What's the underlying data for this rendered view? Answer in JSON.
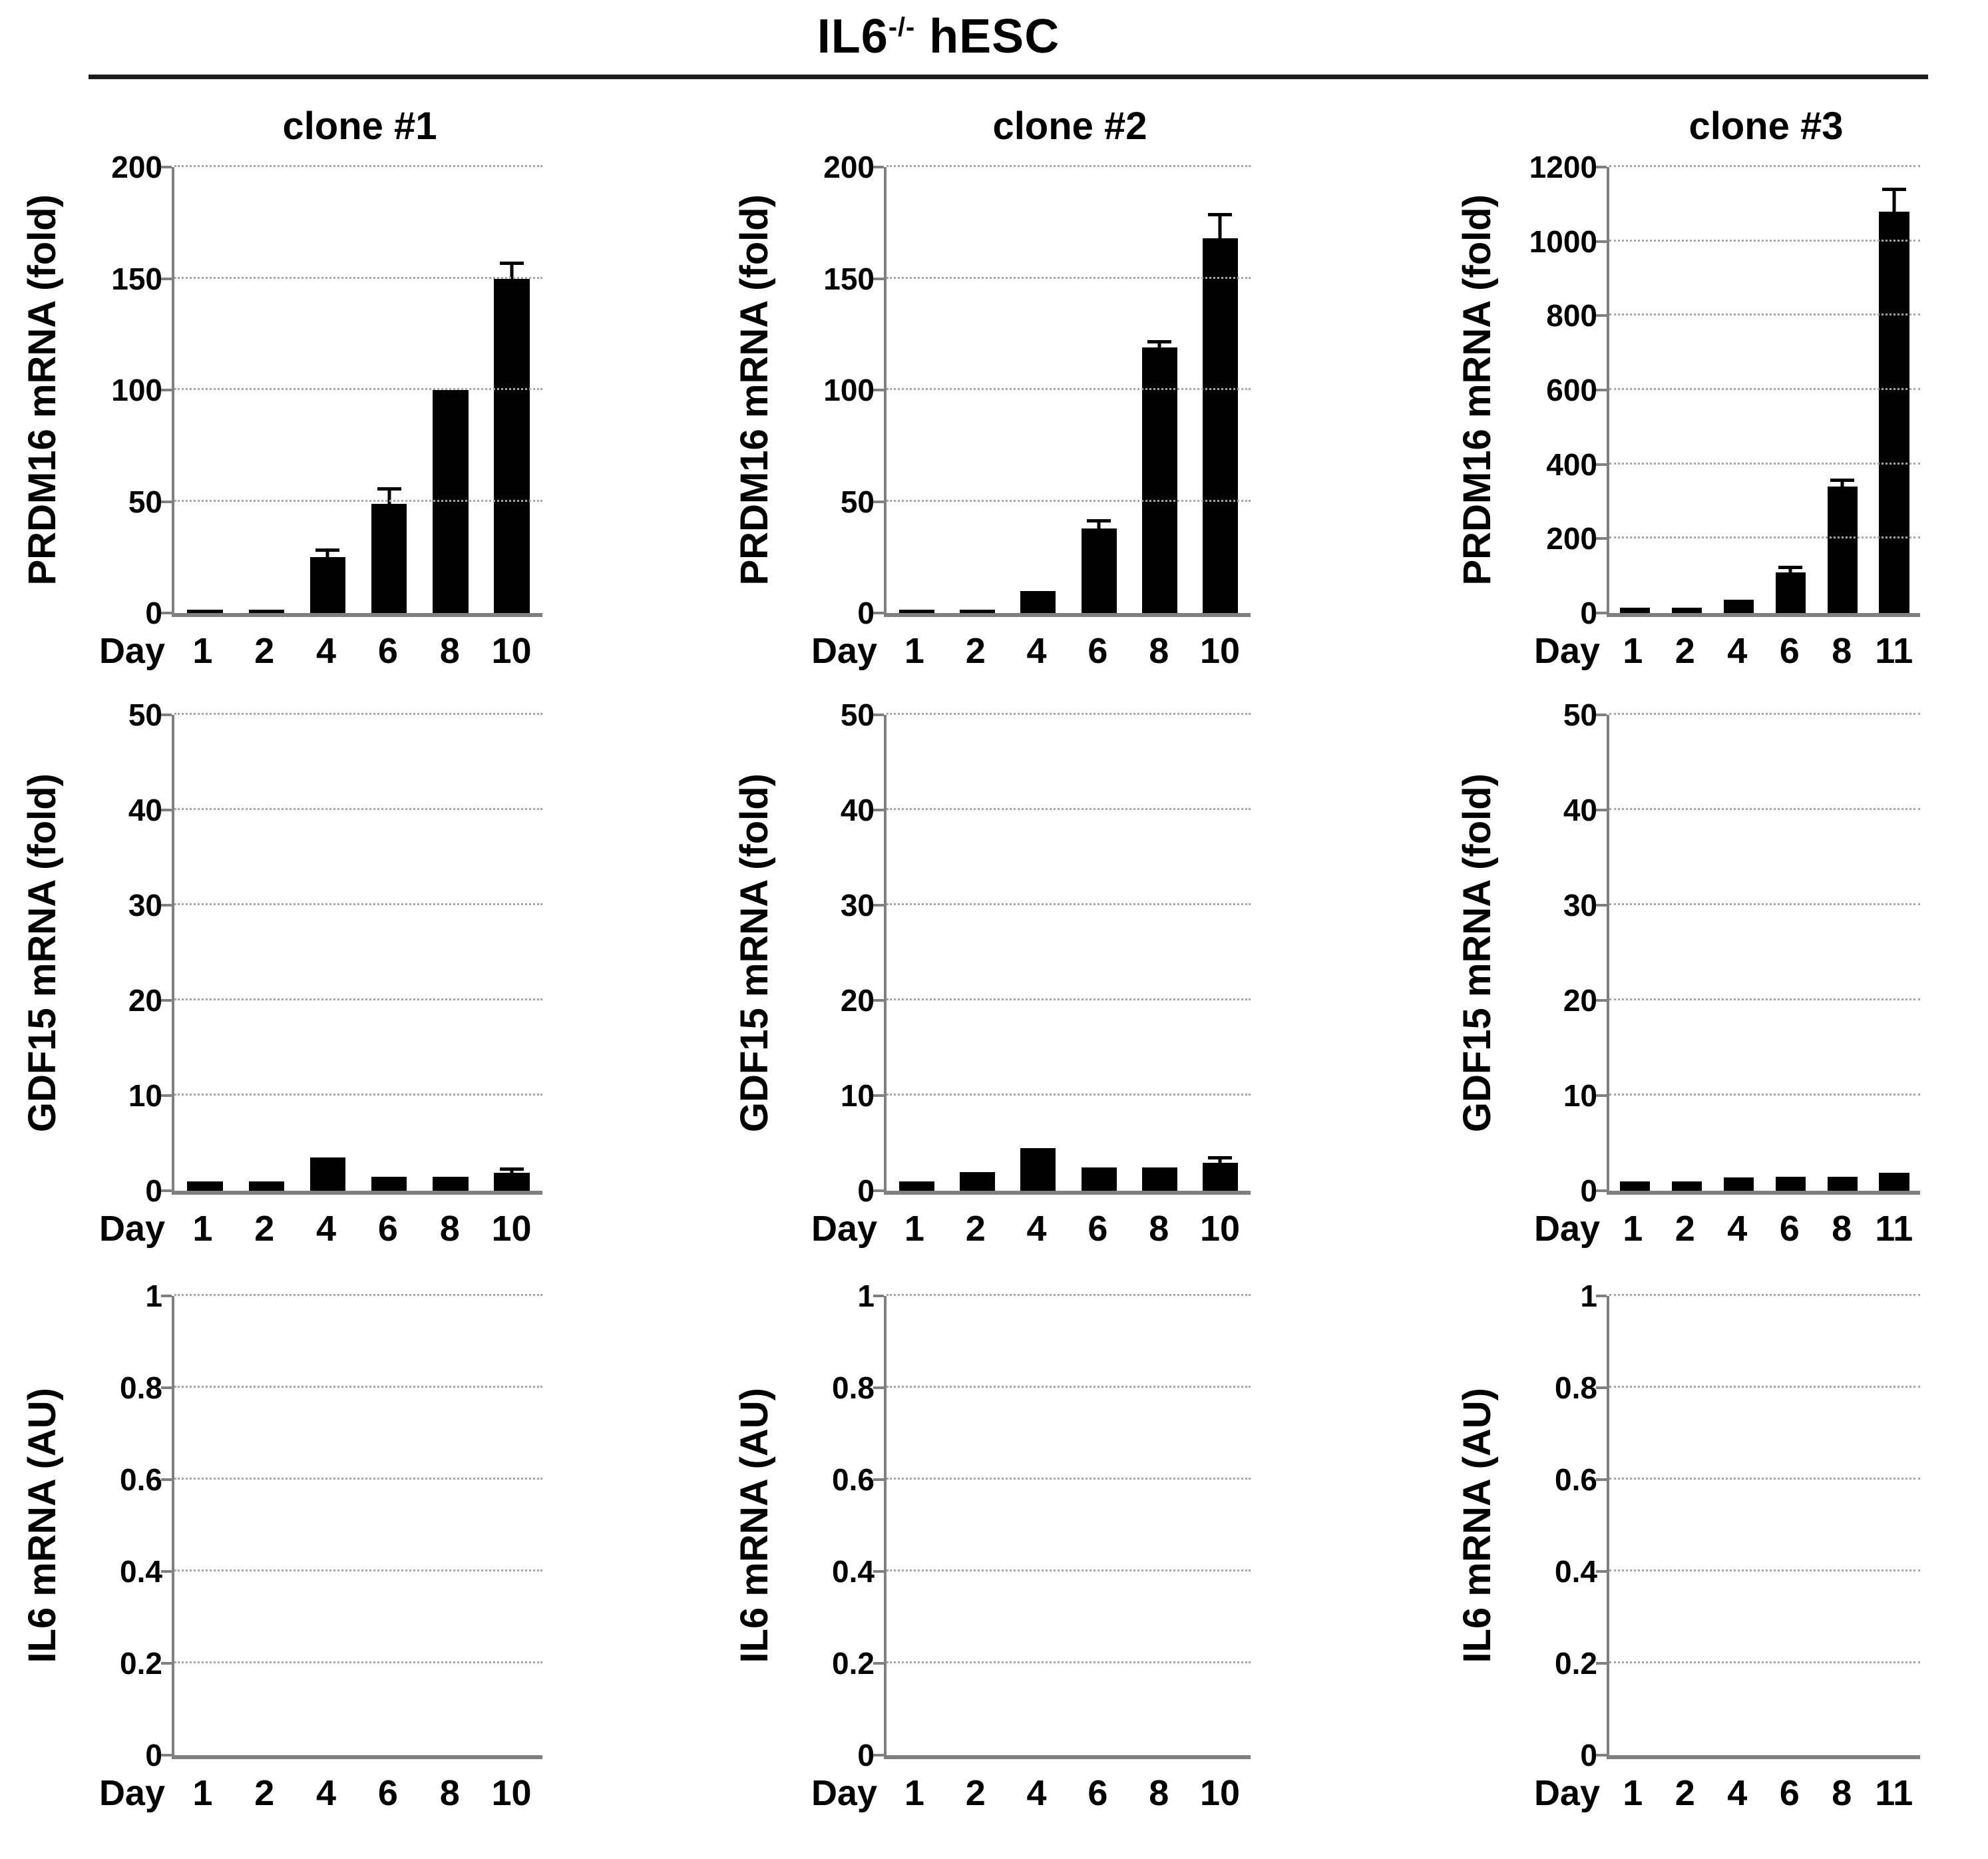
{
  "figure_title": {
    "base": "IL6",
    "sup": "-/-",
    "rest": " hESC"
  },
  "chart_data": [
    {
      "type": "bar",
      "title": "clone #1",
      "ylabel": "PRDM16 mRNA (fold)",
      "xlabel_prefix": "Day",
      "ylim": [
        0,
        200
      ],
      "ytick_labels": [
        "0",
        "50",
        "100",
        "150",
        "200"
      ],
      "categories": [
        "1",
        "2",
        "4",
        "6",
        "8",
        "10"
      ],
      "values": [
        1.5,
        1.5,
        25,
        49,
        100,
        150
      ],
      "errors": [
        0,
        0,
        2.5,
        6,
        0,
        6
      ],
      "grid": true,
      "legend": "none",
      "bar_color": "#000000"
    },
    {
      "type": "bar",
      "title": "clone #2",
      "ylabel": "PRDM16 mRNA (fold)",
      "xlabel_prefix": "Day",
      "ylim": [
        0,
        200
      ],
      "ytick_labels": [
        "0",
        "50",
        "100",
        "150",
        "200"
      ],
      "categories": [
        "1",
        "2",
        "4",
        "6",
        "8",
        "10"
      ],
      "values": [
        1.5,
        1.5,
        10,
        38,
        119,
        168
      ],
      "errors": [
        0,
        0,
        0,
        2.5,
        2,
        10
      ],
      "grid": true,
      "legend": "none",
      "bar_color": "#000000"
    },
    {
      "type": "bar",
      "title": "clone #3",
      "ylabel": "PRDM16 mRNA (fold)",
      "xlabel_prefix": "Day",
      "ylim": [
        0,
        1200
      ],
      "ytick_labels": [
        "0",
        "200",
        "400",
        "600",
        "800",
        "1000",
        "1200"
      ],
      "categories": [
        "1",
        "2",
        "4",
        "6",
        "8",
        "11"
      ],
      "values": [
        15,
        15,
        35,
        110,
        340,
        1080
      ],
      "errors": [
        0,
        0,
        0,
        8,
        12,
        55
      ],
      "grid": true,
      "legend": "none",
      "bar_color": "#000000"
    },
    {
      "type": "bar",
      "title": null,
      "ylabel": "GDF15 mRNA (fold)",
      "xlabel_prefix": "Day",
      "ylim": [
        0,
        50
      ],
      "ytick_labels": [
        "0",
        "10",
        "20",
        "30",
        "40",
        "50"
      ],
      "categories": [
        "1",
        "2",
        "4",
        "6",
        "8",
        "10"
      ],
      "values": [
        1,
        1,
        3.5,
        1.5,
        1.5,
        1.9
      ],
      "errors": [
        0,
        0,
        0,
        0,
        0,
        0.25
      ],
      "grid": true,
      "legend": "none",
      "bar_color": "#000000"
    },
    {
      "type": "bar",
      "title": null,
      "ylabel": "GDF15 mRNA (fold)",
      "xlabel_prefix": "Day",
      "ylim": [
        0,
        50
      ],
      "ytick_labels": [
        "0",
        "10",
        "20",
        "30",
        "40",
        "50"
      ],
      "categories": [
        "1",
        "2",
        "4",
        "6",
        "8",
        "10"
      ],
      "values": [
        1,
        2,
        4.5,
        2.5,
        2.5,
        3
      ],
      "errors": [
        0,
        0,
        0,
        0,
        0,
        0.3
      ],
      "grid": true,
      "legend": "none",
      "bar_color": "#000000"
    },
    {
      "type": "bar",
      "title": null,
      "ylabel": "GDF15 mRNA (fold)",
      "xlabel_prefix": "Day",
      "ylim": [
        0,
        50
      ],
      "ytick_labels": [
        "0",
        "10",
        "20",
        "30",
        "40",
        "50"
      ],
      "categories": [
        "1",
        "2",
        "4",
        "6",
        "8",
        "11"
      ],
      "values": [
        1,
        1,
        1.4,
        1.5,
        1.5,
        1.9
      ],
      "errors": [
        0,
        0,
        0,
        0,
        0,
        0
      ],
      "grid": true,
      "legend": "none",
      "bar_color": "#000000"
    },
    {
      "type": "bar",
      "title": null,
      "ylabel": "IL6 mRNA (AU)",
      "xlabel_prefix": "Day",
      "ylim": [
        0,
        1
      ],
      "ytick_labels": [
        "0",
        "0.2",
        "0.4",
        "0.6",
        "0.8",
        "1"
      ],
      "categories": [
        "1",
        "2",
        "4",
        "6",
        "8",
        "10"
      ],
      "values": [
        0,
        0,
        0,
        0,
        0,
        0
      ],
      "errors": [
        0,
        0,
        0,
        0,
        0,
        0
      ],
      "grid": true,
      "legend": "none",
      "bar_color": "#000000"
    },
    {
      "type": "bar",
      "title": null,
      "ylabel": "IL6 mRNA (AU)",
      "xlabel_prefix": "Day",
      "ylim": [
        0,
        1
      ],
      "ytick_labels": [
        "0",
        "0.2",
        "0.4",
        "0.6",
        "0.8",
        "1"
      ],
      "categories": [
        "1",
        "2",
        "4",
        "6",
        "8",
        "10"
      ],
      "values": [
        0,
        0,
        0,
        0,
        0,
        0
      ],
      "errors": [
        0,
        0,
        0,
        0,
        0,
        0
      ],
      "grid": true,
      "legend": "none",
      "bar_color": "#000000"
    },
    {
      "type": "bar",
      "title": null,
      "ylabel": "IL6 mRNA (AU)",
      "xlabel_prefix": "Day",
      "ylim": [
        0,
        1
      ],
      "ytick_labels": [
        "0",
        "0.2",
        "0.4",
        "0.6",
        "0.8",
        "1"
      ],
      "categories": [
        "1",
        "2",
        "4",
        "6",
        "8",
        "11"
      ],
      "values": [
        0,
        0,
        0,
        0,
        0,
        0
      ],
      "errors": [
        0,
        0,
        0,
        0,
        0,
        0
      ],
      "grid": true,
      "legend": "none",
      "bar_color": "#000000"
    }
  ]
}
